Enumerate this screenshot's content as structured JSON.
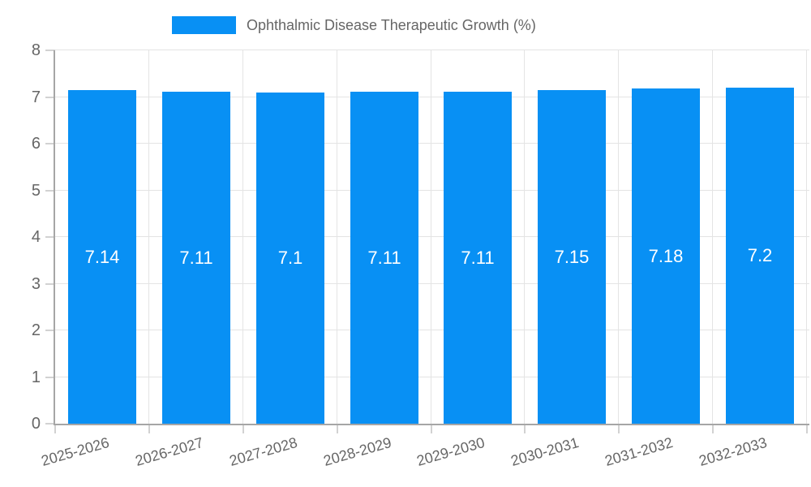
{
  "legend": {
    "label": "Ophthalmic Disease Therapeutic Growth (%)"
  },
  "colors": {
    "bar": "#0890f4",
    "grid": "#e4e4e4",
    "axis": "#a6a6a6",
    "tick": "#d2d2d2",
    "text": "#666666",
    "value_label": "#ffffff",
    "background": "#ffffff"
  },
  "chart_data": {
    "type": "bar",
    "categories": [
      "2025-2026",
      "2026-2027",
      "2027-2028",
      "2028-2029",
      "2029-2030",
      "2030-2031",
      "2031-2032",
      "2032-2033"
    ],
    "values": [
      7.14,
      7.11,
      7.1,
      7.11,
      7.11,
      7.15,
      7.18,
      7.2
    ],
    "series_name": "Ophthalmic Disease Therapeutic Growth (%)",
    "title": "",
    "xlabel": "",
    "ylabel": "",
    "ylim": [
      0,
      8
    ],
    "yticks": [
      0,
      1,
      2,
      3,
      4,
      5,
      6,
      7,
      8
    ],
    "grid": true,
    "legend_position": "top",
    "value_labels_inside_bars": true,
    "x_label_rotation_deg": -16
  }
}
